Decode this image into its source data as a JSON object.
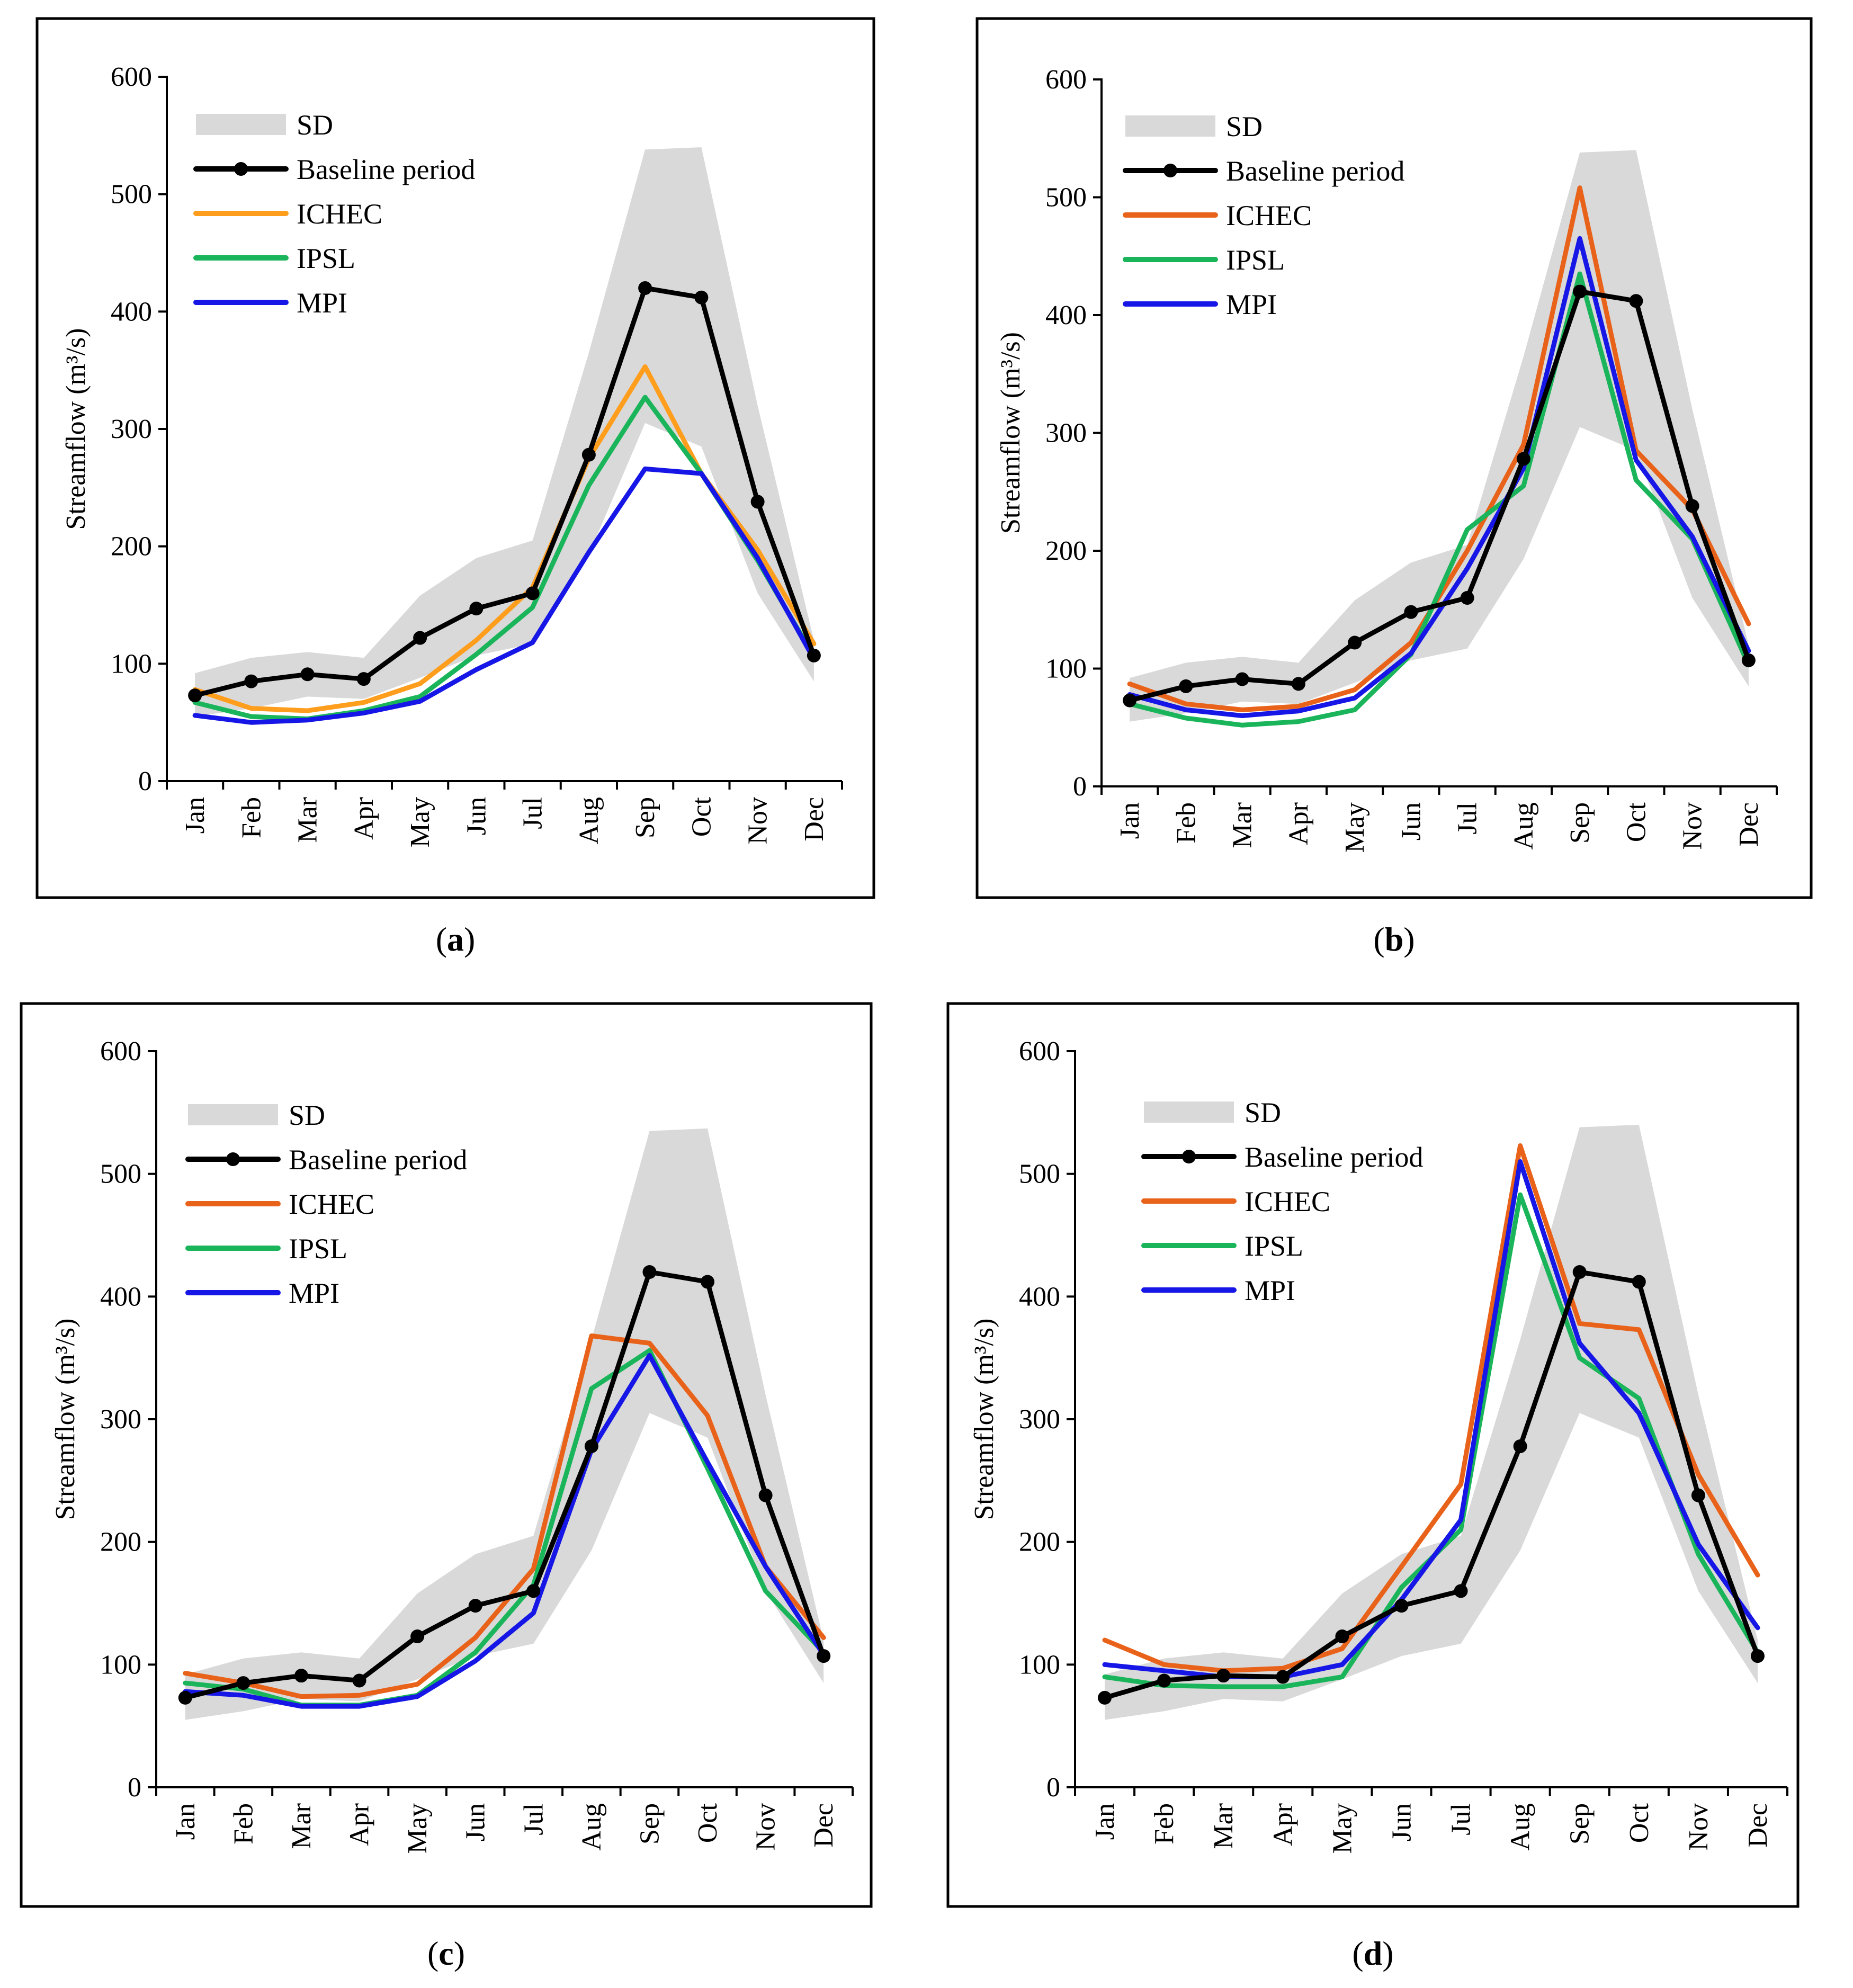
{
  "colors": {
    "sd_band": "#d9d9d9",
    "baseline": "#000000",
    "ichec_a": "#ff9d1c",
    "ichec": "#e8621a",
    "ipsl": "#1ab55a",
    "mpi": "#1616e6"
  },
  "legend": {
    "sd": "SD",
    "baseline": "Baseline period",
    "ichec": "ICHEC",
    "ipsl": "IPSL",
    "mpi": "MPI"
  },
  "chart_data": [
    {
      "type": "line",
      "caption": "(a)",
      "caption_letter": "a",
      "xlabel": "",
      "ylabel": "Streamflow (m³/s)",
      "ylim": [
        0,
        600
      ],
      "yticks": [
        0,
        100,
        200,
        300,
        400,
        500,
        600
      ],
      "categories": [
        "Jan",
        "Feb",
        "Mar",
        "Apr",
        "May",
        "Jun",
        "Jul",
        "Aug",
        "Sep",
        "Oct",
        "Nov",
        "Dec"
      ],
      "sd_band": {
        "name": "SD",
        "upper": [
          92,
          105,
          110,
          105,
          158,
          190,
          205,
          365,
          538,
          540,
          320,
          120
        ],
        "lower": [
          55,
          62,
          72,
          70,
          88,
          107,
          117,
          193,
          305,
          285,
          160,
          85
        ]
      },
      "series": [
        {
          "name": "Baseline period",
          "color_key": "baseline",
          "markers": true,
          "values": [
            73,
            85,
            91,
            87,
            122,
            147,
            160,
            278,
            420,
            412,
            238,
            107
          ]
        },
        {
          "name": "ICHEC",
          "color_key": "ichec_a",
          "markers": false,
          "values": [
            78,
            62,
            60,
            67,
            83,
            120,
            165,
            275,
            353,
            262,
            197,
            117
          ]
        },
        {
          "name": "IPSL",
          "color_key": "ipsl",
          "markers": false,
          "values": [
            67,
            55,
            53,
            60,
            72,
            108,
            148,
            252,
            327,
            262,
            188,
            106
          ]
        },
        {
          "name": "MPI",
          "color_key": "mpi",
          "markers": false,
          "values": [
            56,
            50,
            52,
            58,
            68,
            95,
            118,
            195,
            266,
            262,
            190,
            104
          ]
        }
      ]
    },
    {
      "type": "line",
      "caption": "(b)",
      "caption_letter": "b",
      "xlabel": "",
      "ylabel": "Streamflow (m³/s)",
      "ylim": [
        0,
        600
      ],
      "yticks": [
        0,
        100,
        200,
        300,
        400,
        500,
        600
      ],
      "categories": [
        "Jan",
        "Feb",
        "Mar",
        "Apr",
        "May",
        "Jun",
        "Jul",
        "Aug",
        "Sep",
        "Oct",
        "Nov",
        "Dec"
      ],
      "sd_band": {
        "name": "SD",
        "upper": [
          92,
          105,
          110,
          105,
          158,
          190,
          205,
          365,
          538,
          540,
          320,
          120
        ],
        "lower": [
          55,
          62,
          72,
          70,
          88,
          107,
          117,
          193,
          305,
          285,
          160,
          85
        ]
      },
      "series": [
        {
          "name": "Baseline period",
          "color_key": "baseline",
          "markers": true,
          "values": [
            73,
            85,
            91,
            87,
            122,
            148,
            160,
            278,
            420,
            412,
            238,
            107
          ]
        },
        {
          "name": "ICHEC",
          "color_key": "ichec",
          "markers": false,
          "values": [
            87,
            70,
            65,
            68,
            82,
            122,
            200,
            290,
            508,
            285,
            235,
            138
          ]
        },
        {
          "name": "IPSL",
          "color_key": "ipsl",
          "markers": false,
          "values": [
            70,
            58,
            52,
            55,
            65,
            112,
            218,
            255,
            435,
            260,
            210,
            103
          ]
        },
        {
          "name": "MPI",
          "color_key": "mpi",
          "markers": false,
          "values": [
            78,
            65,
            60,
            64,
            75,
            113,
            185,
            270,
            465,
            277,
            212,
            115
          ]
        }
      ]
    },
    {
      "type": "line",
      "caption": "(c)",
      "caption_letter": "c",
      "xlabel": "",
      "ylabel": "Streamflow (m³/s)",
      "ylim": [
        0,
        600
      ],
      "yticks": [
        0,
        100,
        200,
        300,
        400,
        500,
        600
      ],
      "categories": [
        "Jan",
        "Feb",
        "Mar",
        "Apr",
        "May",
        "Jun",
        "Jul",
        "Aug",
        "Sep",
        "Oct",
        "Nov",
        "Dec"
      ],
      "sd_band": {
        "name": "SD",
        "upper": [
          92,
          105,
          110,
          105,
          158,
          190,
          205,
          365,
          535,
          537,
          320,
          120
        ],
        "lower": [
          55,
          62,
          72,
          70,
          88,
          107,
          117,
          193,
          305,
          285,
          160,
          85
        ]
      },
      "series": [
        {
          "name": "Baseline period",
          "color_key": "baseline",
          "markers": true,
          "values": [
            73,
            85,
            91,
            87,
            123,
            148,
            160,
            278,
            420,
            412,
            238,
            107
          ]
        },
        {
          "name": "ICHEC",
          "color_key": "ichec",
          "markers": false,
          "values": [
            93,
            85,
            74,
            75,
            84,
            122,
            178,
            368,
            362,
            303,
            180,
            122
          ]
        },
        {
          "name": "IPSL",
          "color_key": "ipsl",
          "markers": false,
          "values": [
            85,
            80,
            67,
            67,
            75,
            110,
            165,
            325,
            356,
            260,
            160,
            110
          ]
        },
        {
          "name": "MPI",
          "color_key": "mpi",
          "markers": false,
          "values": [
            78,
            75,
            66,
            66,
            74,
            103,
            142,
            275,
            352,
            265,
            180,
            108
          ]
        }
      ]
    },
    {
      "type": "line",
      "caption": "(d)",
      "caption_letter": "d",
      "xlabel": "",
      "ylabel": "Streamflow (m³/s)",
      "ylim": [
        0,
        600
      ],
      "yticks": [
        0,
        100,
        200,
        300,
        400,
        500,
        600
      ],
      "categories": [
        "Jan",
        "Feb",
        "Mar",
        "Apr",
        "May",
        "Jun",
        "Jul",
        "Aug",
        "Sep",
        "Oct",
        "Nov",
        "Dec"
      ],
      "sd_band": {
        "name": "SD",
        "upper": [
          92,
          105,
          110,
          105,
          158,
          190,
          205,
          365,
          538,
          540,
          320,
          120
        ],
        "lower": [
          55,
          62,
          72,
          70,
          88,
          107,
          117,
          193,
          305,
          285,
          160,
          85
        ]
      },
      "series": [
        {
          "name": "Baseline period",
          "color_key": "baseline",
          "markers": true,
          "values": [
            73,
            87,
            91,
            90,
            123,
            148,
            160,
            278,
            420,
            412,
            238,
            107
          ]
        },
        {
          "name": "ICHEC",
          "color_key": "ichec",
          "markers": false,
          "values": [
            120,
            100,
            95,
            97,
            113,
            180,
            247,
            523,
            378,
            373,
            255,
            173
          ]
        },
        {
          "name": "IPSL",
          "color_key": "ipsl",
          "markers": false,
          "values": [
            90,
            83,
            82,
            82,
            90,
            163,
            210,
            483,
            350,
            317,
            190,
            110
          ]
        },
        {
          "name": "MPI",
          "color_key": "mpi",
          "markers": false,
          "values": [
            100,
            95,
            90,
            90,
            100,
            153,
            218,
            510,
            362,
            305,
            198,
            130
          ]
        }
      ]
    }
  ]
}
